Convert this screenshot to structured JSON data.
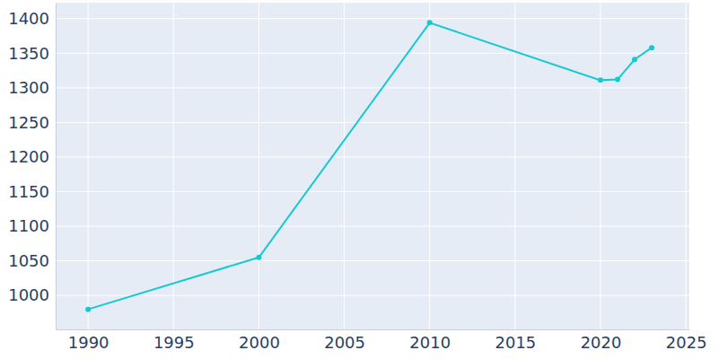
{
  "chart_data": {
    "type": "line",
    "x": [
      1990,
      2000,
      2010,
      2020,
      2021,
      2022,
      2023
    ],
    "values": [
      980,
      1055,
      1394,
      1311,
      1312,
      1341,
      1358
    ],
    "color": "#17c9cf",
    "marker": "circle",
    "xlim": [
      1988.1,
      2025.2
    ],
    "xticks": [
      1990,
      1995,
      2000,
      2005,
      2010,
      2015,
      2020,
      2025
    ],
    "ylim": [
      951,
      1423
    ],
    "yticks": [
      1000,
      1050,
      1100,
      1150,
      1200,
      1250,
      1300,
      1350,
      1400
    ],
    "grid": true
  }
}
